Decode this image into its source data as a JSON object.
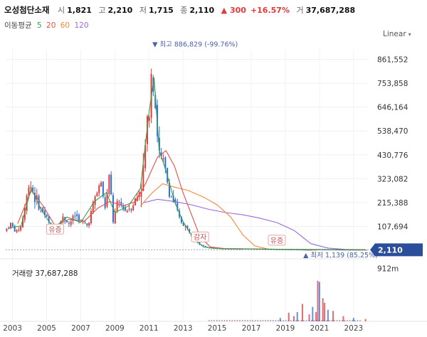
{
  "header": {
    "name": "오성첨단소재",
    "open_label": "시",
    "open": "1,821",
    "high_label": "고",
    "high": "2,210",
    "low_label": "저",
    "low": "1,715",
    "close_label": "종",
    "close": "2,110",
    "change": "▲ 300",
    "change_pct": "+16.57%",
    "volume_label": "거",
    "volume": "37,687,288"
  },
  "ma_legend": {
    "title": "이동평균",
    "p5": "5",
    "p20": "20",
    "p60": "60",
    "p120": "120"
  },
  "scale_mode": "Linear",
  "colors": {
    "up": "#e03a3a",
    "down": "#2f6fd6",
    "ma5": "#35a047",
    "ma20": "#e3504a",
    "ma60": "#f08a3a",
    "ma120": "#9a6ad8",
    "price_tag": "#2b4d9a"
  },
  "chart_data": {
    "type": "candlestick",
    "price_axis": {
      "ticks": [
        861552,
        753858,
        646164,
        538470,
        430776,
        323082,
        215388,
        107694
      ],
      "tick_labels": [
        "861,552",
        "753,858",
        "646,164",
        "538,470",
        "430,776",
        "323,082",
        "215,388",
        "107,694"
      ],
      "current_label": "2,110",
      "current_value": 2110
    },
    "x_axis": {
      "labels": [
        "2003",
        "2005",
        "2007",
        "2009",
        "2011",
        "2013",
        "2015",
        "2017",
        "2019",
        "2021",
        "2023"
      ],
      "values": [
        2003,
        2005,
        2007,
        2009,
        2011,
        2013,
        2015,
        2017,
        2019,
        2021,
        2023
      ],
      "range": [
        2002.6,
        2023.8
      ]
    },
    "price_series": [
      [
        2002.6,
        90000
      ],
      [
        2002.9,
        120000
      ],
      [
        2003.2,
        80000
      ],
      [
        2003.5,
        110000
      ],
      [
        2003.8,
        220000
      ],
      [
        2004.0,
        320000
      ],
      [
        2004.3,
        240000
      ],
      [
        2004.7,
        180000
      ],
      [
        2005.0,
        150000
      ],
      [
        2005.3,
        90000
      ],
      [
        2005.6,
        110000
      ],
      [
        2006.0,
        150000
      ],
      [
        2006.3,
        120000
      ],
      [
        2006.7,
        160000
      ],
      [
        2007.0,
        130000
      ],
      [
        2007.4,
        110000
      ],
      [
        2007.8,
        230000
      ],
      [
        2008.2,
        310000
      ],
      [
        2008.4,
        180000
      ],
      [
        2008.7,
        330000
      ],
      [
        2008.9,
        130000
      ],
      [
        2009.2,
        220000
      ],
      [
        2009.6,
        180000
      ],
      [
        2010.0,
        200000
      ],
      [
        2010.3,
        240000
      ],
      [
        2010.6,
        300000
      ],
      [
        2010.8,
        480000
      ],
      [
        2011.0,
        650000
      ],
      [
        2011.2,
        886829
      ],
      [
        2011.4,
        620000
      ],
      [
        2011.6,
        430000
      ],
      [
        2011.9,
        380000
      ],
      [
        2012.2,
        260000
      ],
      [
        2012.5,
        210000
      ],
      [
        2012.8,
        140000
      ],
      [
        2013.1,
        110000
      ],
      [
        2013.4,
        80000
      ],
      [
        2013.7,
        50000
      ],
      [
        2014.0,
        25000
      ],
      [
        2014.4,
        12000
      ],
      [
        2015.0,
        8000
      ],
      [
        2016.0,
        6000
      ],
      [
        2017.0,
        7000
      ],
      [
        2018.0,
        5000
      ],
      [
        2019.0,
        4000
      ],
      [
        2019.8,
        3000
      ],
      [
        2020.3,
        1139
      ],
      [
        2021.0,
        3500
      ],
      [
        2022.0,
        2500
      ],
      [
        2023.0,
        1900
      ],
      [
        2023.7,
        2110
      ]
    ],
    "series": [
      {
        "name": "120",
        "values": [
          [
            2010.7,
            215000
          ],
          [
            2011.5,
            230000
          ],
          [
            2012.5,
            220000
          ],
          [
            2013.5,
            205000
          ],
          [
            2014.5,
            185000
          ],
          [
            2015.5,
            170000
          ],
          [
            2016.5,
            160000
          ],
          [
            2017.5,
            145000
          ],
          [
            2018.5,
            125000
          ],
          [
            2019.5,
            90000
          ],
          [
            2020.5,
            30000
          ],
          [
            2021.5,
            10000
          ],
          [
            2022.5,
            4000
          ],
          [
            2023.7,
            2200
          ]
        ]
      },
      {
        "name": "60",
        "values": [
          [
            2010.5,
            200000
          ],
          [
            2011.2,
            260000
          ],
          [
            2011.8,
            300000
          ],
          [
            2012.5,
            285000
          ],
          [
            2013.3,
            270000
          ],
          [
            2014.2,
            240000
          ],
          [
            2015.0,
            205000
          ],
          [
            2015.8,
            150000
          ],
          [
            2016.5,
            70000
          ],
          [
            2017.2,
            20000
          ],
          [
            2018.0,
            5000
          ],
          [
            2019.0,
            3500
          ],
          [
            2020.0,
            3000
          ],
          [
            2021.0,
            3200
          ],
          [
            2022.0,
            2600
          ],
          [
            2023.7,
            2100
          ]
        ]
      },
      {
        "name": "20",
        "values": [
          [
            2003.3,
            120000
          ],
          [
            2004.1,
            270000
          ],
          [
            2004.8,
            200000
          ],
          [
            2005.5,
            110000
          ],
          [
            2006.3,
            140000
          ],
          [
            2007.2,
            130000
          ],
          [
            2008.0,
            190000
          ],
          [
            2008.7,
            220000
          ],
          [
            2009.5,
            200000
          ],
          [
            2010.2,
            220000
          ],
          [
            2010.8,
            300000
          ],
          [
            2011.5,
            420000
          ],
          [
            2012.0,
            450000
          ],
          [
            2012.5,
            380000
          ],
          [
            2013.0,
            260000
          ],
          [
            2013.5,
            160000
          ],
          [
            2014.0,
            60000
          ],
          [
            2014.6,
            15000
          ],
          [
            2015.5,
            7000
          ],
          [
            2017.0,
            6000
          ],
          [
            2019.0,
            4000
          ],
          [
            2021.0,
            3300
          ],
          [
            2023.7,
            2100
          ]
        ]
      },
      {
        "name": "5",
        "values": [
          [
            2002.8,
            100000
          ],
          [
            2003.5,
            110000
          ],
          [
            2004.1,
            280000
          ],
          [
            2004.7,
            180000
          ],
          [
            2005.4,
            100000
          ],
          [
            2006.2,
            150000
          ],
          [
            2007.0,
            125000
          ],
          [
            2007.8,
            220000
          ],
          [
            2008.5,
            260000
          ],
          [
            2009.0,
            170000
          ],
          [
            2009.8,
            200000
          ],
          [
            2010.5,
            280000
          ],
          [
            2011.0,
            620000
          ],
          [
            2011.3,
            780000
          ],
          [
            2011.6,
            450000
          ],
          [
            2012.0,
            360000
          ],
          [
            2012.5,
            220000
          ],
          [
            2013.0,
            130000
          ],
          [
            2013.6,
            55000
          ],
          [
            2014.2,
            15000
          ],
          [
            2015.0,
            8000
          ],
          [
            2017.0,
            6500
          ],
          [
            2019.0,
            4000
          ],
          [
            2021.0,
            3500
          ],
          [
            2023.7,
            2110
          ]
        ]
      }
    ],
    "volume": {
      "label": "거래량",
      "value": "37,687,288",
      "tick_label": "912m",
      "tick_value": 912,
      "bars": [
        [
          2018.7,
          60
        ],
        [
          2019.2,
          150
        ],
        [
          2019.5,
          90
        ],
        [
          2019.7,
          160
        ],
        [
          2020.0,
          300
        ],
        [
          2020.4,
          120
        ],
        [
          2020.6,
          250
        ],
        [
          2020.8,
          160
        ],
        [
          2020.9,
          700
        ],
        [
          2021.0,
          680
        ],
        [
          2021.2,
          400
        ],
        [
          2021.3,
          320
        ],
        [
          2021.5,
          200
        ],
        [
          2021.8,
          180
        ],
        [
          2022.4,
          90
        ],
        [
          2023.0,
          60
        ],
        [
          2023.7,
          40
        ]
      ]
    },
    "annotations": [
      {
        "text": "▼ 최고 886,829 (-99.76%)",
        "x": 2011.2,
        "y": 886829,
        "kind": "high"
      },
      {
        "text": "▲ 최저 1,139 (85.25%)",
        "x": 2020.3,
        "y": 1139,
        "kind": "low"
      },
      {
        "text": "유증",
        "x": 2005.5,
        "y": 60000,
        "kind": "event"
      },
      {
        "text": "감자",
        "x": 2014.0,
        "y": 25000,
        "kind": "event"
      },
      {
        "text": "유증",
        "x": 2018.5,
        "y": 10000,
        "kind": "event"
      }
    ]
  }
}
